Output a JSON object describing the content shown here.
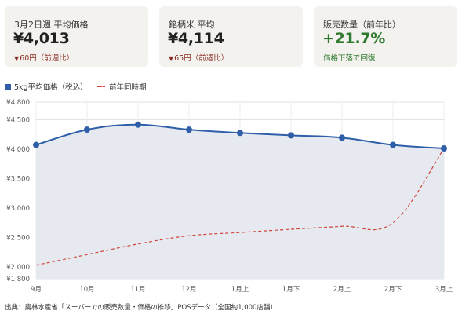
{
  "cards": [
    {
      "label": "3月2日週 平均価格",
      "value": "¥4,013",
      "sub_icon": "▼",
      "sub": "60円（前週比）",
      "sub_color": "#8a2e25"
    },
    {
      "label": "銘柄米 平均",
      "value": "¥4,114",
      "sub_icon": "▼",
      "sub": "65円（前週比）",
      "sub_color": "#8a2e25"
    },
    {
      "label": "販売数量（前年比）",
      "value": "+21.7%",
      "sub_icon": "",
      "sub": "価格下落で回復",
      "sub_color": "#2f7a2f"
    }
  ],
  "legend": {
    "series1": "5kg平均価格（税込）",
    "series2": "前年同時期"
  },
  "footnote": "出典：農林水産省「スーパーでの販売数量・価格の推移」POSデータ（全国約1,000店舗）",
  "chart_data": {
    "type": "line",
    "categories": [
      "9月",
      "10月",
      "11月",
      "12月",
      "1月上",
      "1月下",
      "2月上",
      "2月下",
      "3月上"
    ],
    "ylim": [
      1800,
      4800
    ],
    "y_ticks": [
      1800,
      2000,
      2500,
      3000,
      3500,
      4000,
      4500,
      4800
    ],
    "y_tick_labels": [
      "¥1,800",
      "¥2,000",
      "¥2,500",
      "¥3,000",
      "¥3,500",
      "¥4,000",
      "¥4,500",
      "¥4,800"
    ],
    "grid": true,
    "legend_position": "top-left",
    "series": [
      {
        "name": "5kg平均価格（税込）",
        "values": [
          4073,
          4332,
          4417,
          4331,
          4276,
          4235,
          4195,
          4073,
          4013
        ],
        "color": "#2e5ea8",
        "fill": "#e6eaf0",
        "style": "solid-markers"
      },
      {
        "name": "前年同時期",
        "values": [
          2030,
          2210,
          2390,
          2530,
          2585,
          2640,
          2690,
          2750,
          4010
        ],
        "color": "#d0443a",
        "style": "dashed"
      }
    ]
  }
}
